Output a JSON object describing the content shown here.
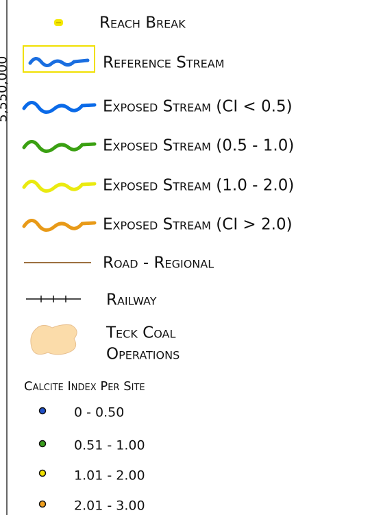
{
  "axis_label": "5,550,000",
  "legend": {
    "items": [
      {
        "label": "Reach Break"
      },
      {
        "label": "Reference Stream"
      },
      {
        "label": "Exposed Stream (CI < 0.5)"
      },
      {
        "label": "Exposed Stream (0.5 - 1.0)"
      },
      {
        "label": "Exposed Stream (1.0 - 2.0)"
      },
      {
        "label": "Exposed Stream (CI > 2.0)"
      },
      {
        "label": "Road - Regional"
      },
      {
        "label": "Railway"
      },
      {
        "label": "Teck Coal",
        "label2": "Operations"
      }
    ],
    "points_title": "Calcite Index Per Site",
    "points": [
      {
        "label": "0 - 0.50"
      },
      {
        "label": "0.51 - 1.00"
      },
      {
        "label": "1.01 - 2.00"
      },
      {
        "label": "2.01 - 3.00"
      }
    ]
  }
}
